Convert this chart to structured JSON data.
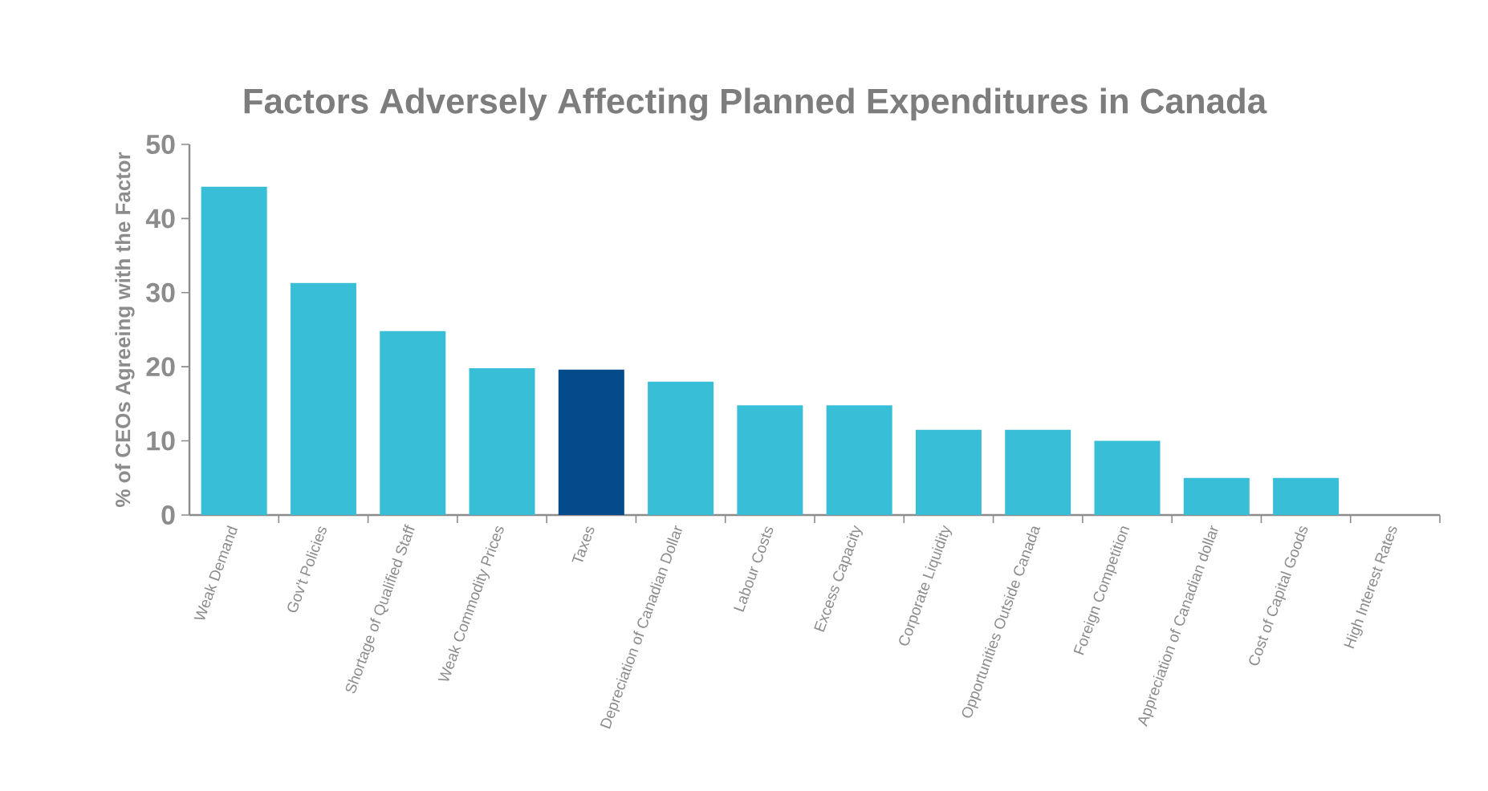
{
  "chart_data": {
    "type": "bar",
    "title": "Factors Adversely Affecting Planned Expenditures in Canada",
    "ylabel": "% of CEOs Agreeing with the Factor",
    "categories": [
      "Weak Demand",
      "Gov't Policies",
      "Shortage of Qualified Staff",
      "Weak Commodity Prices",
      "Taxes",
      "Depreciation of Canadian Dollar",
      "Labour Costs",
      "Excess Capacity",
      "Corporate Liquidity",
      "Opportunities Outside Canada",
      "Foreign Competition",
      "Appreciation of Canadian dollar",
      "Cost of Capital Goods",
      "High Interest Rates"
    ],
    "values": [
      44.3,
      31.3,
      24.8,
      19.8,
      19.6,
      18.0,
      14.8,
      14.8,
      11.5,
      11.5,
      10.0,
      5.0,
      5.0,
      0
    ],
    "colors": [
      "#38bfd7",
      "#38bfd7",
      "#38bfd7",
      "#38bfd7",
      "#034b8b",
      "#38bfd7",
      "#38bfd7",
      "#38bfd7",
      "#38bfd7",
      "#38bfd7",
      "#38bfd7",
      "#38bfd7",
      "#38bfd7",
      "#38bfd7"
    ],
    "ylim": [
      0,
      50
    ],
    "yticks": [
      0,
      10,
      20,
      30,
      40,
      50
    ]
  }
}
